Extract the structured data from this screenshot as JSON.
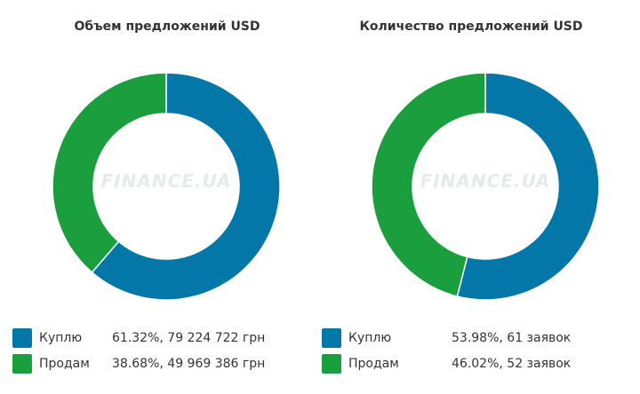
{
  "chart_data": [
    {
      "type": "pie",
      "title": "Объем предложений USD",
      "watermark": "FINANCE.UA",
      "series": [
        {
          "name": "Куплю",
          "value": 61.32,
          "color": "#0277a8",
          "label": "61.32%, 79 224 722 грн"
        },
        {
          "name": "Продам",
          "value": 38.68,
          "color": "#1a9e3e",
          "label": "38.68%, 49 969 386 грн"
        }
      ]
    },
    {
      "type": "pie",
      "title": "Количество предложений USD",
      "watermark": "FINANCE.UA",
      "series": [
        {
          "name": "Куплю",
          "value": 53.98,
          "color": "#0277a8",
          "label": "53.98%, 61 заявок"
        },
        {
          "name": "Продам",
          "value": 46.02,
          "color": "#1a9e3e",
          "label": "46.02%, 52 заявок"
        }
      ]
    }
  ]
}
